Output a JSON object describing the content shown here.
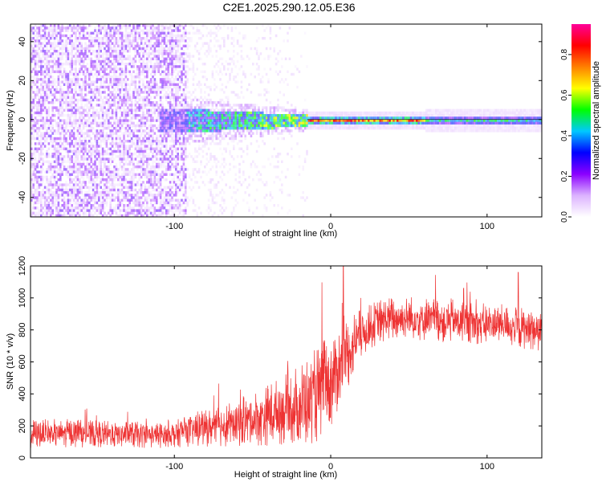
{
  "figure": {
    "title": "C2E1.2025.290.12.05.E36"
  },
  "chart_data": [
    {
      "type": "heatmap",
      "title": "C2E1.2025.290.12.05.E36",
      "xlabel": "Height of straight line (km)",
      "ylabel": "Frequency (Hz)",
      "xlim": [
        -192,
        135
      ],
      "ylim": [
        -50,
        49
      ],
      "x_ticks": [
        -100,
        0,
        100
      ],
      "y_ticks": [
        -40,
        -20,
        0,
        20,
        40
      ],
      "colorbar": {
        "label": "Normalized spectral amplitude",
        "range": [
          0.0,
          0.95
        ],
        "ticks": [
          0.0,
          0.2,
          0.4,
          0.6,
          0.8
        ],
        "tick_labels": [
          "0.0",
          "0.2",
          "0.4",
          "0.6",
          "0.8"
        ],
        "colormap": [
          "#ffffff",
          "#dcb3ff",
          "#8b00ff",
          "#0000ff",
          "#00c8ff",
          "#00ff00",
          "#ffff00",
          "#ff8000",
          "#ff0000",
          "#ff0099"
        ]
      },
      "regions": [
        {
          "name": "noise",
          "x_range": [
            -192,
            -93
          ],
          "freq_half_width": 49,
          "amplitude": 0.15
        },
        {
          "name": "transition",
          "x_range": [
            -93,
            -15
          ],
          "freq_half_width": 6,
          "amplitude": 0.35
        },
        {
          "name": "signal",
          "x_range": [
            -15,
            135
          ],
          "freq_half_width": 2,
          "amplitude": 0.85
        }
      ]
    },
    {
      "type": "line",
      "xlabel": "Height of straight line (km)",
      "ylabel": "SNR (10 * v/v)",
      "xlim": [
        -192,
        135
      ],
      "ylim": [
        0,
        1200
      ],
      "x_ticks": [
        -100,
        0,
        100
      ],
      "y_ticks": [
        0,
        200,
        400,
        600,
        800,
        1000,
        1200
      ],
      "series": [
        {
          "name": "SNR",
          "color": "#ee3333",
          "x": [
            -192,
            -170,
            -150,
            -130,
            -110,
            -100,
            -90,
            -70,
            -50,
            -30,
            -20,
            -10,
            0,
            5,
            10,
            15,
            20,
            30,
            40,
            50,
            60,
            70,
            80,
            90,
            100,
            110,
            120,
            130,
            135
          ],
          "y_mean": [
            150,
            155,
            150,
            145,
            140,
            150,
            170,
            200,
            240,
            300,
            330,
            380,
            480,
            560,
            640,
            720,
            780,
            850,
            870,
            875,
            870,
            860,
            855,
            845,
            835,
            830,
            815,
            800,
            790
          ],
          "y_spread": [
            90,
            90,
            85,
            85,
            80,
            85,
            100,
            130,
            170,
            220,
            260,
            300,
            300,
            260,
            230,
            200,
            150,
            140,
            140,
            140,
            140,
            140,
            140,
            130,
            130,
            130,
            130,
            130,
            130
          ],
          "peaks": [
            [
              8,
              1200
            ],
            [
              85,
              1060
            ],
            [
              120,
              1160
            ]
          ]
        }
      ]
    }
  ]
}
